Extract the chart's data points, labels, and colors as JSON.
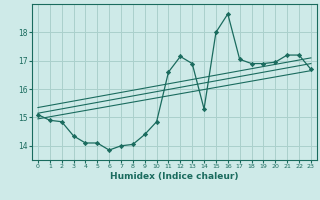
{
  "xlabel": "Humidex (Indice chaleur)",
  "bg_color": "#ceeae8",
  "grid_color": "#aad0cc",
  "line_color": "#1a6b5e",
  "xlim": [
    -0.5,
    23.5
  ],
  "ylim": [
    13.5,
    19.0
  ],
  "xticks": [
    0,
    1,
    2,
    3,
    4,
    5,
    6,
    7,
    8,
    9,
    10,
    11,
    12,
    13,
    14,
    15,
    16,
    17,
    18,
    19,
    20,
    21,
    22,
    23
  ],
  "yticks": [
    14,
    15,
    16,
    17,
    18
  ],
  "main_x": [
    0,
    1,
    2,
    3,
    4,
    5,
    6,
    7,
    8,
    9,
    10,
    11,
    12,
    13,
    14,
    15,
    16,
    17,
    18,
    19,
    20,
    21,
    22,
    23
  ],
  "main_y": [
    15.1,
    14.9,
    14.85,
    14.35,
    14.1,
    14.1,
    13.85,
    14.0,
    14.05,
    14.4,
    14.85,
    16.6,
    17.15,
    16.9,
    15.3,
    18.0,
    18.65,
    17.05,
    16.9,
    16.9,
    16.95,
    17.2,
    17.2,
    16.7
  ],
  "line1_x": [
    0,
    23
  ],
  "line1_y": [
    14.95,
    16.65
  ],
  "line2_x": [
    0,
    23
  ],
  "line2_y": [
    15.15,
    16.9
  ],
  "line3_x": [
    0,
    23
  ],
  "line3_y": [
    15.35,
    17.1
  ]
}
